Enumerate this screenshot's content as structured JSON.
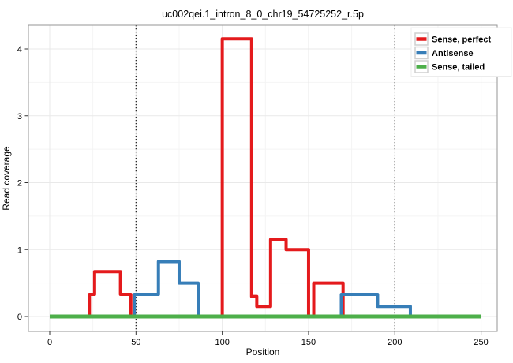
{
  "chart_data": {
    "type": "line",
    "subtype": "step-coverage",
    "title": "uc002qei.1_intron_8_0_chr19_54725252_r.5p",
    "xlabel": "Position",
    "ylabel": "Read coverage",
    "xlim": [
      0,
      250
    ],
    "ylim": [
      0,
      4.15
    ],
    "xticks": [
      0,
      50,
      100,
      150,
      200,
      250
    ],
    "yticks": [
      0,
      1,
      2,
      3,
      4
    ],
    "grid": "major+minor",
    "panel_border": true,
    "annotations": {
      "vlines": [
        {
          "x": 50,
          "style": "dotted",
          "color": "#1a1a1a"
        },
        {
          "x": 200,
          "style": "dotted",
          "color": "#1a1a1a"
        }
      ]
    },
    "legend_position": "top-right-inside",
    "series": [
      {
        "name": "Sense, perfect",
        "color": "#E41A1C",
        "step_points": [
          [
            0,
            0
          ],
          [
            23,
            0.33
          ],
          [
            26,
            0.67
          ],
          [
            41,
            0.33
          ],
          [
            47,
            0
          ],
          [
            100,
            4.15
          ],
          [
            117,
            0.3
          ],
          [
            120,
            0.15
          ],
          [
            128,
            1.15
          ],
          [
            137,
            1.0
          ],
          [
            150,
            0
          ],
          [
            153,
            0.5
          ],
          [
            170,
            0
          ],
          [
            250,
            0
          ]
        ]
      },
      {
        "name": "Antisense",
        "color": "#377EB8",
        "step_points": [
          [
            0,
            0
          ],
          [
            49,
            0.33
          ],
          [
            63,
            0.82
          ],
          [
            75,
            0.5
          ],
          [
            86,
            0
          ],
          [
            169,
            0.33
          ],
          [
            190,
            0.15
          ],
          [
            209,
            0
          ],
          [
            250,
            0
          ]
        ]
      },
      {
        "name": "Sense, tailed",
        "color": "#4DAF4A",
        "step_points": [
          [
            0,
            0
          ],
          [
            250,
            0
          ]
        ]
      }
    ],
    "legend": {
      "items": [
        {
          "label": "Sense, perfect",
          "color": "#E41A1C"
        },
        {
          "label": "Antisense",
          "color": "#377EB8"
        },
        {
          "label": "Sense, tailed",
          "color": "#4DAF4A"
        }
      ]
    },
    "colors": {
      "background": "#ffffff",
      "grid_major": "#e9e9e9",
      "grid_minor": "#f4f4f4",
      "panel_border": "#969696",
      "tick": "#333333",
      "legend_key_border": "#cfcfcf"
    }
  }
}
